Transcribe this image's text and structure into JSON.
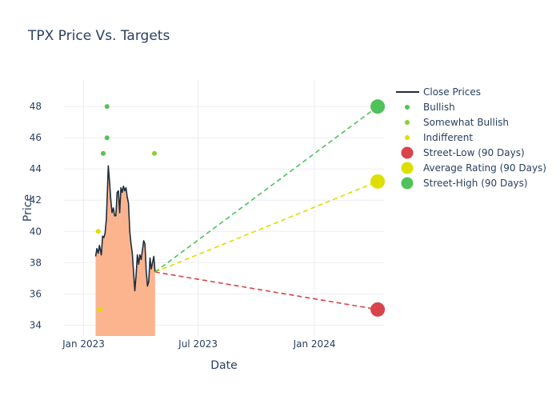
{
  "chart_data": {
    "type": "line",
    "title": "TPX Price Vs. Targets",
    "xlabel": "Date",
    "ylabel": "Price",
    "x_range": [
      "2022-12-01",
      "2024-04-20"
    ],
    "y_range": [
      33.3,
      49.7
    ],
    "x_ticks": [
      {
        "date": "2023-01-01",
        "label": "Jan 2023"
      },
      {
        "date": "2023-07-01",
        "label": "Jul 2023"
      },
      {
        "date": "2024-01-01",
        "label": "Jan 2024"
      }
    ],
    "y_ticks": [
      34,
      36,
      38,
      40,
      42,
      44,
      46,
      48
    ],
    "grid": true,
    "legend_position": "right",
    "close_prices": [
      [
        "2023-01-20",
        38.4
      ],
      [
        "2023-01-22",
        38.9
      ],
      [
        "2023-01-24",
        38.6
      ],
      [
        "2023-01-26",
        39.1
      ],
      [
        "2023-01-29",
        38.5
      ],
      [
        "2023-01-31",
        39.7
      ],
      [
        "2023-02-02",
        39.6
      ],
      [
        "2023-02-04",
        39.9
      ],
      [
        "2023-02-06",
        40.8
      ],
      [
        "2023-02-08",
        43.0
      ],
      [
        "2023-02-09",
        44.2
      ],
      [
        "2023-02-11",
        43.2
      ],
      [
        "2023-02-13",
        42.0
      ],
      [
        "2023-02-15",
        41.2
      ],
      [
        "2023-02-17",
        41.5
      ],
      [
        "2023-02-19",
        41.0
      ],
      [
        "2023-02-21",
        41.0
      ],
      [
        "2023-02-23",
        42.5
      ],
      [
        "2023-02-25",
        42.6
      ],
      [
        "2023-02-27",
        41.2
      ],
      [
        "2023-03-01",
        42.8
      ],
      [
        "2023-03-03",
        42.5
      ],
      [
        "2023-03-05",
        42.9
      ],
      [
        "2023-03-07",
        42.6
      ],
      [
        "2023-03-09",
        42.8
      ],
      [
        "2023-03-11",
        42.2
      ],
      [
        "2023-03-13",
        41.8
      ],
      [
        "2023-03-15",
        40.0
      ],
      [
        "2023-03-17",
        39.2
      ],
      [
        "2023-03-19",
        38.6
      ],
      [
        "2023-03-21",
        37.4
      ],
      [
        "2023-03-23",
        36.2
      ],
      [
        "2023-03-25",
        37.2
      ],
      [
        "2023-03-27",
        38.5
      ],
      [
        "2023-03-29",
        37.9
      ],
      [
        "2023-03-31",
        38.5
      ],
      [
        "2023-04-02",
        38.2
      ],
      [
        "2023-04-04",
        38.8
      ],
      [
        "2023-04-06",
        39.4
      ],
      [
        "2023-04-08",
        39.2
      ],
      [
        "2023-04-10",
        37.5
      ],
      [
        "2023-04-12",
        36.5
      ],
      [
        "2023-04-14",
        36.8
      ],
      [
        "2023-04-16",
        38.3
      ],
      [
        "2023-04-18",
        37.6
      ],
      [
        "2023-04-20",
        38.0
      ],
      [
        "2023-04-22",
        38.4
      ],
      [
        "2023-04-24",
        37.4
      ]
    ],
    "rating_points": [
      {
        "series": "Bullish",
        "date": "2023-02-07",
        "value": 48
      },
      {
        "series": "Bullish",
        "date": "2023-02-07",
        "value": 46
      },
      {
        "series": "Bullish",
        "date": "2023-02-01",
        "value": 45
      },
      {
        "series": "Somewhat Bullish",
        "date": "2023-04-23",
        "value": 45
      },
      {
        "series": "Indifferent",
        "date": "2023-01-24",
        "value": 40
      },
      {
        "series": "Indifferent",
        "date": "2023-01-27",
        "value": 35
      }
    ],
    "targets": {
      "start": {
        "date": "2023-04-24",
        "value": 37.4
      },
      "end_date": "2024-04-10",
      "street_low": 35.0,
      "average": 43.2,
      "street_high": 48.0
    },
    "colors": {
      "close": "#1f2d3d",
      "fill": "#fbb48e",
      "bullish": "#56c156",
      "somewhat_bullish": "#8bd02e",
      "indifferent": "#dede00",
      "street_low": "#d9434a",
      "average": "#dede00",
      "street_high": "#4fc25a",
      "grid": "#ebedf1"
    },
    "legend": [
      {
        "label": "Close Prices",
        "kind": "line",
        "color": "#1f2d3d"
      },
      {
        "label": "Bullish",
        "kind": "dot",
        "color": "#56c156"
      },
      {
        "label": "Somewhat Bullish",
        "kind": "dot",
        "color": "#8bd02e"
      },
      {
        "label": "Indifferent",
        "kind": "dot",
        "color": "#dede00"
      },
      {
        "label": "Street-Low (90 Days)",
        "kind": "big",
        "color": "#d9434a"
      },
      {
        "label": "Average Rating (90 Days)",
        "kind": "big",
        "color": "#dede00"
      },
      {
        "label": "Street-High (90 Days)",
        "kind": "big",
        "color": "#4fc25a"
      }
    ]
  }
}
